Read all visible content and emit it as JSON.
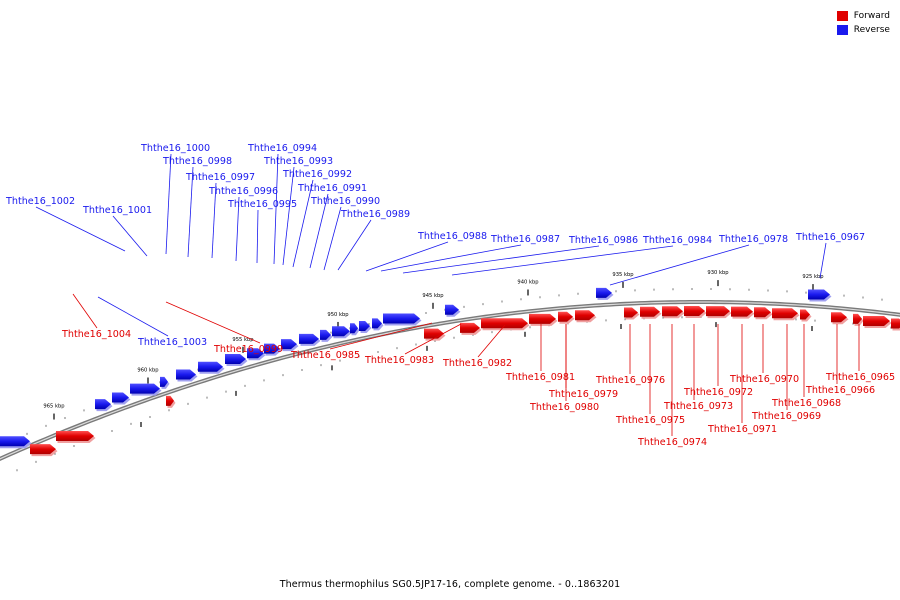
{
  "legend": {
    "forward_label": "Forward",
    "reverse_label": "Reverse",
    "forward_color": "#e00000",
    "reverse_color": "#1a1aee"
  },
  "caption": "Thermus thermophilus SG0.5JP17-16, complete genome. - 0..1863201",
  "scale_labels": [
    "965 kbp",
    "960 kbp",
    "955 kbp",
    "950 kbp",
    "945 kbp",
    "940 kbp",
    "935 kbp",
    "930 kbp",
    "925 kbp"
  ],
  "reverse_gene_labels": [
    "Ththe16_1002",
    "Ththe16_1001",
    "Ththe16_1000",
    "Ththe16_0998",
    "Ththe16_0997",
    "Ththe16_0996",
    "Ththe16_0995",
    "Ththe16_0994",
    "Ththe16_0993",
    "Ththe16_0992",
    "Ththe16_0991",
    "Ththe16_0990",
    "Ththe16_0989",
    "Ththe16_0988",
    "Ththe16_0987",
    "Ththe16_0986",
    "Ththe16_0984",
    "Ththe16_0978",
    "Ththe16_0967",
    "Ththe16_1003"
  ],
  "forward_gene_labels": [
    "Ththe16_1004",
    "Ththe16_0999",
    "Ththe16_0985",
    "Ththe16_0983",
    "Ththe16_0982",
    "Ththe16_0981",
    "Ththe16_0979",
    "Ththe16_0980",
    "Ththe16_0976",
    "Ththe16_0975",
    "Ththe16_0974",
    "Ththe16_0973",
    "Ththe16_0972",
    "Ththe16_0971",
    "Ththe16_0970",
    "Ththe16_0969",
    "Ththe16_0968",
    "Ththe16_0966",
    "Ththe16_0965"
  ]
}
